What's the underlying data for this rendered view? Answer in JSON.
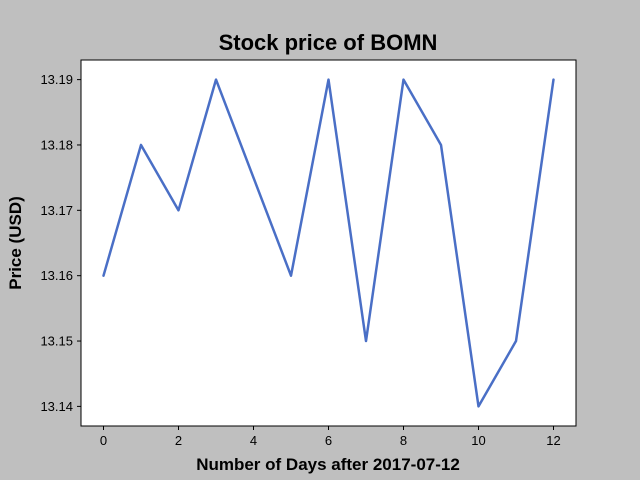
{
  "chart_data": {
    "type": "line",
    "title": "Stock price of BOMN",
    "xlabel": "Number of Days after 2017-07-12",
    "ylabel": "Price (USD)",
    "x": [
      0,
      1,
      2,
      3,
      4,
      5,
      6,
      7,
      8,
      9,
      10,
      11,
      12
    ],
    "series": [
      {
        "name": "BOMN",
        "values": [
          13.16,
          13.18,
          13.17,
          13.19,
          13.175,
          13.16,
          13.19,
          13.15,
          13.19,
          13.18,
          13.14,
          13.15,
          13.19
        ]
      }
    ],
    "xlim": [
      -0.6,
      12.6
    ],
    "ylim": [
      13.137,
      13.193
    ],
    "xticks": [
      0,
      2,
      4,
      6,
      8,
      10,
      12
    ],
    "xtick_labels": [
      "0",
      "2",
      "4",
      "6",
      "8",
      "10",
      "12"
    ],
    "yticks": [
      13.14,
      13.15,
      13.16,
      13.17,
      13.18,
      13.19
    ],
    "ytick_labels": [
      "13.14",
      "13.15",
      "13.16",
      "13.17",
      "13.18",
      "13.19"
    ],
    "grid": false,
    "line_color": "#4a6fc6",
    "background_color": "#bfbfbf",
    "plot_background_color": "#ffffff"
  }
}
